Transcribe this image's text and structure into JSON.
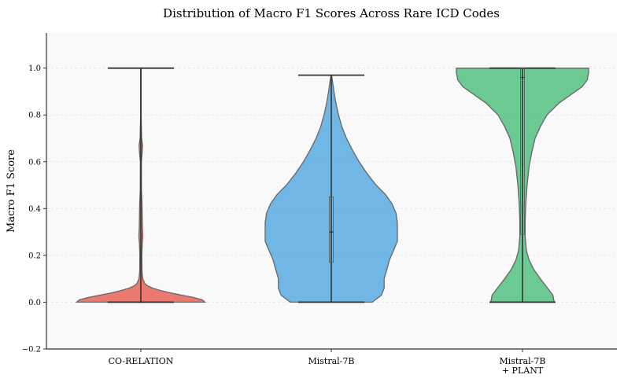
{
  "chart_data": {
    "type": "violin",
    "title": "Distribution of Macro F1 Scores Across Rare ICD Codes",
    "xlabel": "",
    "ylabel": "Macro F1 Score",
    "ylim": [
      -0.2,
      1.15
    ],
    "yticks": [
      -0.2,
      0.0,
      0.2,
      0.4,
      0.6,
      0.8,
      1.0
    ],
    "ytick_labels": [
      "−0.2",
      "0.0",
      "0.2",
      "0.4",
      "0.6",
      "0.8",
      "1.0"
    ],
    "grid": true,
    "categories": [
      {
        "label_lines": [
          "CO-RELATION"
        ]
      },
      {
        "label_lines": [
          "Mistral-7B"
        ]
      },
      {
        "label_lines": [
          "Mistral-7B",
          "+ PLANT"
        ]
      }
    ],
    "series": [
      {
        "name": "CO-RELATION",
        "color": "#e8675b",
        "min": 0.0,
        "max": 1.0,
        "q1": 0.0,
        "median": 0.0,
        "q3": 0.0,
        "profile": [
          [
            0.0,
            0.97
          ],
          [
            0.01,
            0.93
          ],
          [
            0.02,
            0.8
          ],
          [
            0.03,
            0.62
          ],
          [
            0.04,
            0.44
          ],
          [
            0.05,
            0.3
          ],
          [
            0.06,
            0.18
          ],
          [
            0.07,
            0.1
          ],
          [
            0.08,
            0.06
          ],
          [
            0.1,
            0.03
          ],
          [
            0.13,
            0.018
          ],
          [
            0.2,
            0.016
          ],
          [
            0.25,
            0.022
          ],
          [
            0.28,
            0.03
          ],
          [
            0.32,
            0.024
          ],
          [
            0.38,
            0.02
          ],
          [
            0.42,
            0.018
          ],
          [
            0.48,
            0.01
          ],
          [
            0.55,
            0.008
          ],
          [
            0.6,
            0.008
          ],
          [
            0.64,
            0.02
          ],
          [
            0.67,
            0.026
          ],
          [
            0.7,
            0.012
          ],
          [
            0.8,
            0.004
          ],
          [
            1.0,
            0.003
          ]
        ]
      },
      {
        "name": "Mistral-7B",
        "color": "#5dade2",
        "min": 0.0,
        "max": 0.97,
        "q1": 0.17,
        "median": 0.3,
        "q3": 0.45,
        "profile": [
          [
            0.0,
            0.62
          ],
          [
            0.03,
            0.76
          ],
          [
            0.06,
            0.8
          ],
          [
            0.1,
            0.8
          ],
          [
            0.14,
            0.84
          ],
          [
            0.18,
            0.88
          ],
          [
            0.22,
            0.94
          ],
          [
            0.26,
            1.0
          ],
          [
            0.3,
            1.0
          ],
          [
            0.34,
            1.0
          ],
          [
            0.38,
            0.98
          ],
          [
            0.42,
            0.92
          ],
          [
            0.46,
            0.82
          ],
          [
            0.5,
            0.68
          ],
          [
            0.55,
            0.54
          ],
          [
            0.6,
            0.42
          ],
          [
            0.65,
            0.32
          ],
          [
            0.7,
            0.23
          ],
          [
            0.75,
            0.16
          ],
          [
            0.8,
            0.11
          ],
          [
            0.85,
            0.07
          ],
          [
            0.9,
            0.04
          ],
          [
            0.94,
            0.02
          ],
          [
            0.97,
            0.005
          ]
        ]
      },
      {
        "name": "Mistral-7B + PLANT",
        "color": "#58c185",
        "min": 0.0,
        "max": 1.0,
        "q1": 0.29,
        "median": 0.96,
        "q3": 1.0,
        "profile": [
          [
            0.0,
            0.48
          ],
          [
            0.03,
            0.46
          ],
          [
            0.06,
            0.38
          ],
          [
            0.1,
            0.27
          ],
          [
            0.14,
            0.17
          ],
          [
            0.18,
            0.1
          ],
          [
            0.22,
            0.06
          ],
          [
            0.28,
            0.04
          ],
          [
            0.35,
            0.04
          ],
          [
            0.42,
            0.05
          ],
          [
            0.5,
            0.07
          ],
          [
            0.58,
            0.1
          ],
          [
            0.64,
            0.14
          ],
          [
            0.7,
            0.19
          ],
          [
            0.75,
            0.27
          ],
          [
            0.8,
            0.37
          ],
          [
            0.85,
            0.55
          ],
          [
            0.89,
            0.75
          ],
          [
            0.92,
            0.9
          ],
          [
            0.95,
            0.98
          ],
          [
            0.98,
            1.0
          ],
          [
            1.0,
            1.0
          ]
        ]
      }
    ]
  }
}
